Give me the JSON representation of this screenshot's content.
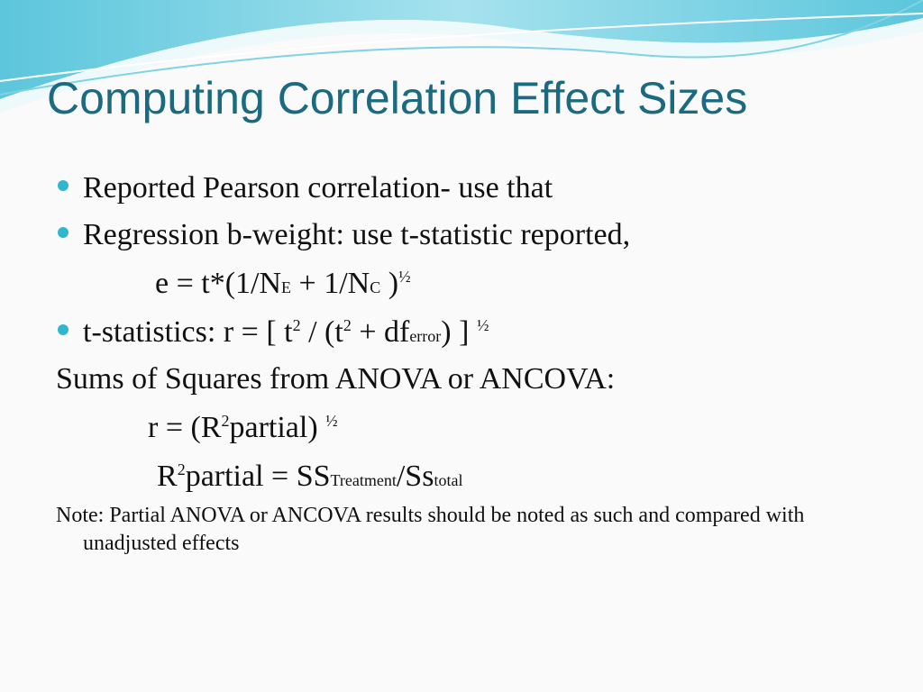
{
  "title": "Computing Correlation Effect Sizes",
  "bullets": [
    "Reported Pearson correlation- use that",
    "Regression b-weight: use t-statistic reported,"
  ],
  "formula_e": [
    "e = t*(1/N",
    "E",
    " + 1/N",
    "C",
    " )",
    "½"
  ],
  "bullet_t": [
    "t-statistics: r = [ t",
    "2",
    " / (t",
    "2",
    " + df",
    "error",
    ") ] ",
    "½"
  ],
  "heading": "Sums of Squares from ANOVA or ANCOVA:",
  "formula_r": [
    "r = (R",
    "2",
    "partial) ",
    "½"
  ],
  "formula_r2": [
    "R",
    "2",
    "partial = SS",
    "Treatment",
    "/Ss",
    "total"
  ],
  "note": "Note: Partial ANOVA or ANCOVA results should be noted as such and compared with unadjusted effects"
}
